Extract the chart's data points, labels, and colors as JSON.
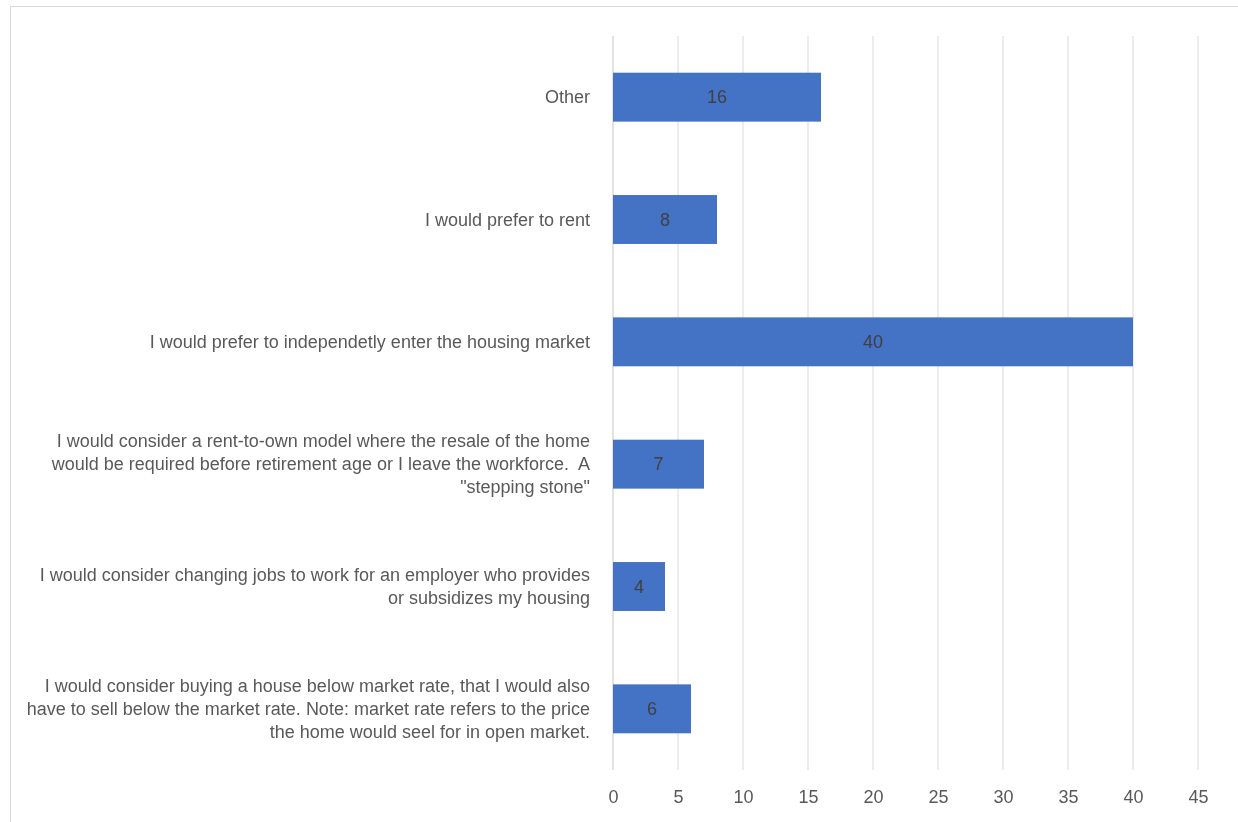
{
  "chart_data": {
    "type": "bar",
    "orientation": "horizontal",
    "categories": [
      "Other",
      "I would prefer to rent",
      "I would prefer to independetly enter the housing market",
      "I would consider a rent-to-own model where the resale of the home would be required before retirement age or I leave the workforce.  A \"stepping stone\"",
      "I would consider changing jobs to work for an employer who provides or subsidizes my housing",
      "I would consider buying a house below market rate, that I would also have to sell below the market rate. Note: market rate refers to the price the home would seel for in open market."
    ],
    "values": [
      16,
      8,
      40,
      7,
      4,
      6
    ],
    "color": "#4472c4",
    "xlim": [
      0,
      45
    ],
    "xticks": [
      0,
      5,
      10,
      15,
      20,
      25,
      30,
      35,
      40,
      45
    ],
    "grid": "x",
    "data_labels": true
  }
}
